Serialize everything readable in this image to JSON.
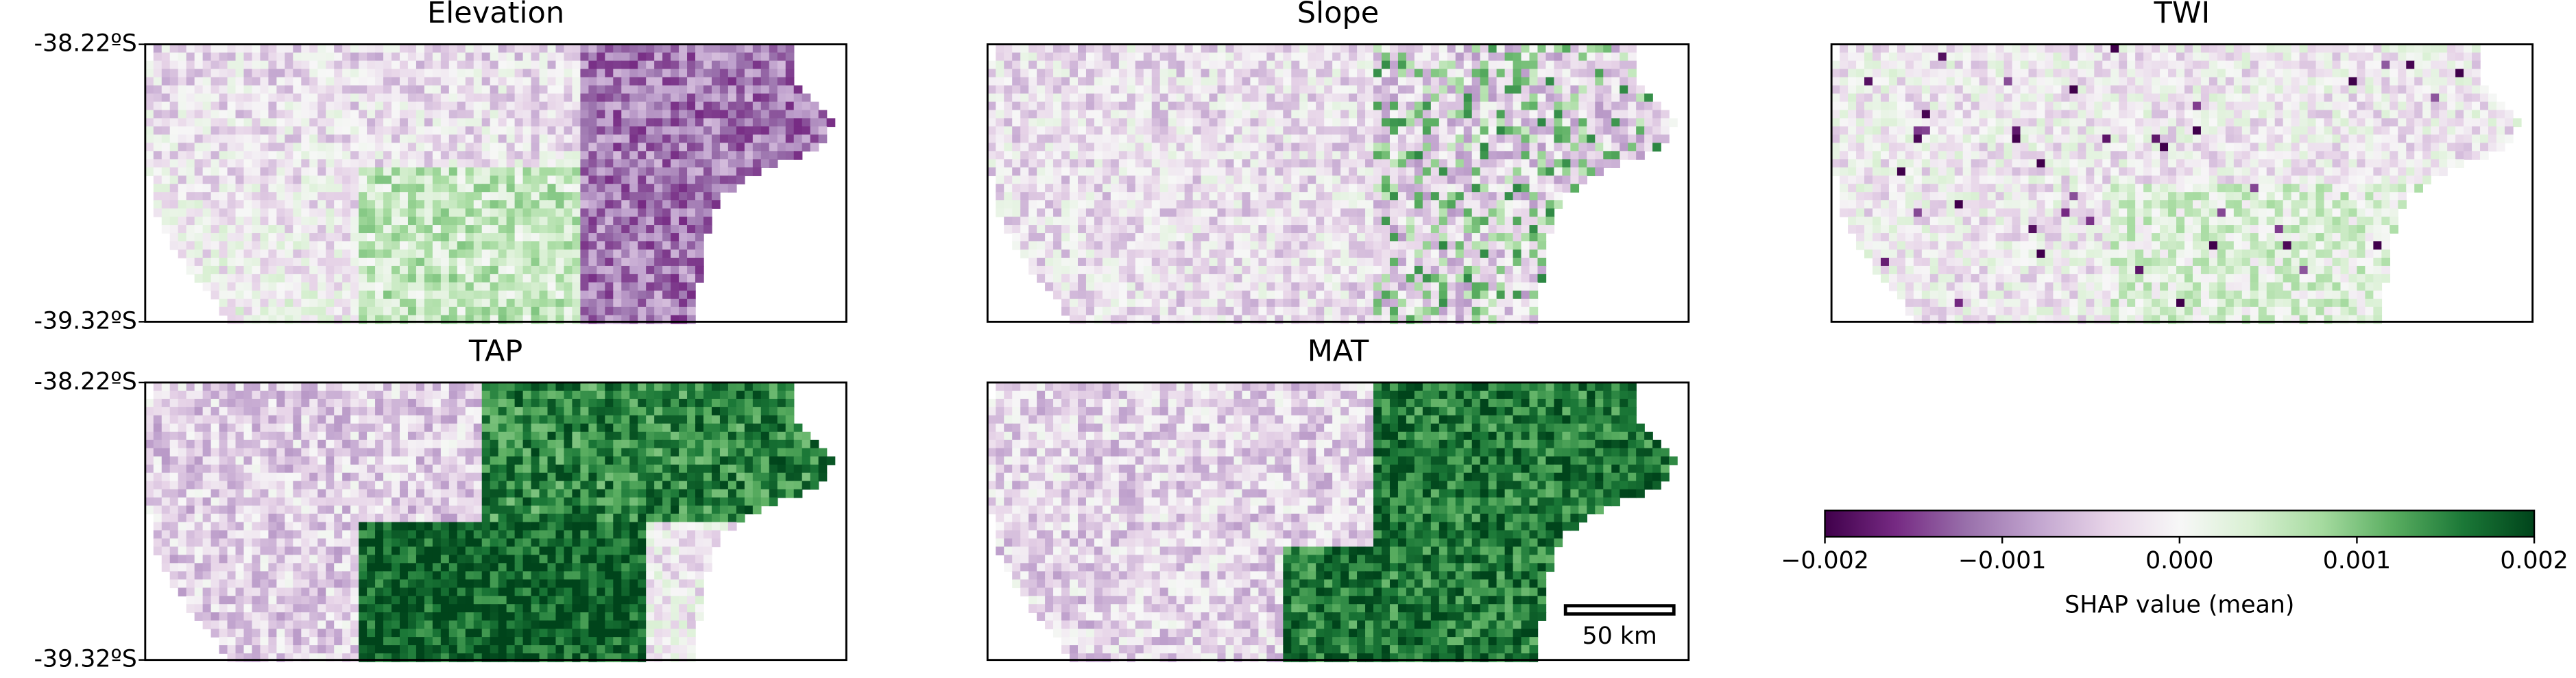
{
  "panels": [
    {
      "title": "Elevation"
    },
    {
      "title": "Slope"
    },
    {
      "title": "TWI"
    },
    {
      "title": "TAP"
    },
    {
      "title": "MAT"
    }
  ],
  "lat_labels": [
    "-38.22ºS",
    "-39.32ºS"
  ],
  "colorbar": {
    "lim": [
      -0.002,
      0.002
    ],
    "ticks": [
      {
        "value": -0.002,
        "label": "−0.002"
      },
      {
        "value": -0.001,
        "label": "−0.001"
      },
      {
        "value": 0,
        "label": "0.000"
      },
      0.001,
      0.002
    ],
    "label": "SHAP value (mean)",
    "colors": [
      "#40004b",
      "#762a83",
      "#9970ab",
      "#c2a5cf",
      "#e7d4e8",
      "#f7f7f7",
      "#d9f0d3",
      "#a6dba0",
      "#5aae61",
      "#1b7837",
      "#00441b"
    ]
  },
  "scale_bar": "50 km"
}
